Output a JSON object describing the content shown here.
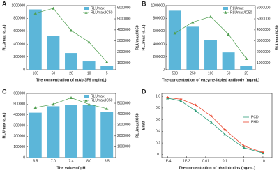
{
  "chart_data": [
    {
      "type": "bar",
      "panel_label": "A",
      "xlabel": "The concentration of mAb 3F9 (ng/mL)",
      "ylabel": "RLUmax (a.u.)",
      "y2label": "RLUmax/IC50",
      "categories": [
        "100",
        "50",
        "20",
        "10",
        "5"
      ],
      "series": [
        {
          "name": "RLUmax",
          "type": "bar",
          "color": "#5cb6d9",
          "values": [
            940000,
            530000,
            260000,
            130000,
            60000
          ]
        },
        {
          "name": "RLUmax/IC50",
          "type": "line",
          "axis": "y2",
          "color": "#4f9e4f",
          "values": [
            5500000,
            5950000,
            3950000,
            2900000,
            1100000
          ]
        }
      ],
      "ylim": [
        0,
        1000000
      ],
      "yticks": [
        0,
        200000,
        400000,
        600000,
        800000,
        1000000
      ],
      "y2lim": [
        400000,
        6200000
      ],
      "y2ticks": [
        1000000,
        2000000,
        3000000,
        4000000,
        5000000,
        6000000
      ],
      "legend": "upper right"
    },
    {
      "type": "bar",
      "panel_label": "B",
      "xlabel": "The concentration of enzyme-labled antibody (ng/mL)",
      "ylabel": "RLUmax (a.u.)",
      "y2label": "RLUmax/IC50",
      "categories": [
        "500",
        "250",
        "100",
        "50",
        "25"
      ],
      "series": [
        {
          "name": "RLUmax",
          "type": "bar",
          "color": "#5cb6d9",
          "values": [
            920000,
            670000,
            460000,
            270000,
            60000
          ]
        },
        {
          "name": "RLUmax/IC50",
          "type": "line",
          "axis": "y2",
          "color": "#4f9e4f",
          "values": [
            3700000,
            4700000,
            5200000,
            3600000,
            1400000
          ]
        }
      ],
      "ylim": [
        0,
        1000000
      ],
      "yticks": [
        0,
        200000,
        400000,
        600000,
        800000,
        1000000
      ],
      "y2lim": [
        400000,
        6200000
      ],
      "y2ticks": [
        1000000,
        2000000,
        3000000,
        4000000,
        5000000,
        6000000
      ],
      "legend": "upper right"
    },
    {
      "type": "bar",
      "panel_label": "C",
      "xlabel": "The value of pH",
      "ylabel": "RLUmax (a.u.)",
      "y2label": "RLUmax/IC50",
      "categories": [
        "6.5",
        "7.0",
        "7.4",
        "8.0",
        "8.5"
      ],
      "series": [
        {
          "name": "RLUmax",
          "type": "bar",
          "color": "#5cb6d9",
          "values": [
            420000,
            480000,
            495000,
            490000,
            430000
          ]
        },
        {
          "name": "RLUmax/IC50",
          "type": "line",
          "axis": "y2",
          "color": "#4f9e4f",
          "values": [
            4600000,
            4900000,
            5500000,
            4900000,
            4500000
          ]
        }
      ],
      "ylim": [
        0,
        600000
      ],
      "yticks": [
        0,
        100000,
        200000,
        300000,
        400000,
        500000,
        600000
      ],
      "y2lim": [
        0,
        5900000
      ],
      "y2ticks": [
        1000000,
        2000000,
        3000000,
        4000000,
        5000000
      ],
      "legend": "upper right"
    },
    {
      "type": "line",
      "panel_label": "D",
      "xlabel": "The concentration of phallotoxins (ng/mL)",
      "ylabel": "B/B0",
      "x": [
        0.0001,
        0.0005,
        0.003,
        0.02,
        0.1,
        1,
        10
      ],
      "xscale": "log",
      "series": [
        {
          "name": "PCD",
          "color": "#2e9e7a",
          "marker": "triangle",
          "values": [
            0.97,
            0.92,
            0.75,
            0.55,
            0.35,
            0.12,
            0.03
          ]
        },
        {
          "name": "PHD",
          "color": "#e8452c",
          "marker": "star",
          "values": [
            0.98,
            0.95,
            0.85,
            0.66,
            0.43,
            0.15,
            0.04
          ]
        }
      ],
      "xlim": [
        5e-05,
        30
      ],
      "xticks": [
        {
          "value": 0.0001,
          "label": "1E-4"
        },
        {
          "value": 0.001,
          "label": "1E-3"
        },
        0.01,
        0.1,
        1,
        10
      ],
      "ylim": [
        -0.05,
        1.05
      ],
      "yticks": [
        {
          "value": 0,
          "label": "0.0"
        },
        0.2,
        0.4,
        0.6,
        0.8,
        {
          "value": 1,
          "label": "1.0"
        }
      ],
      "legend": "center right"
    }
  ]
}
